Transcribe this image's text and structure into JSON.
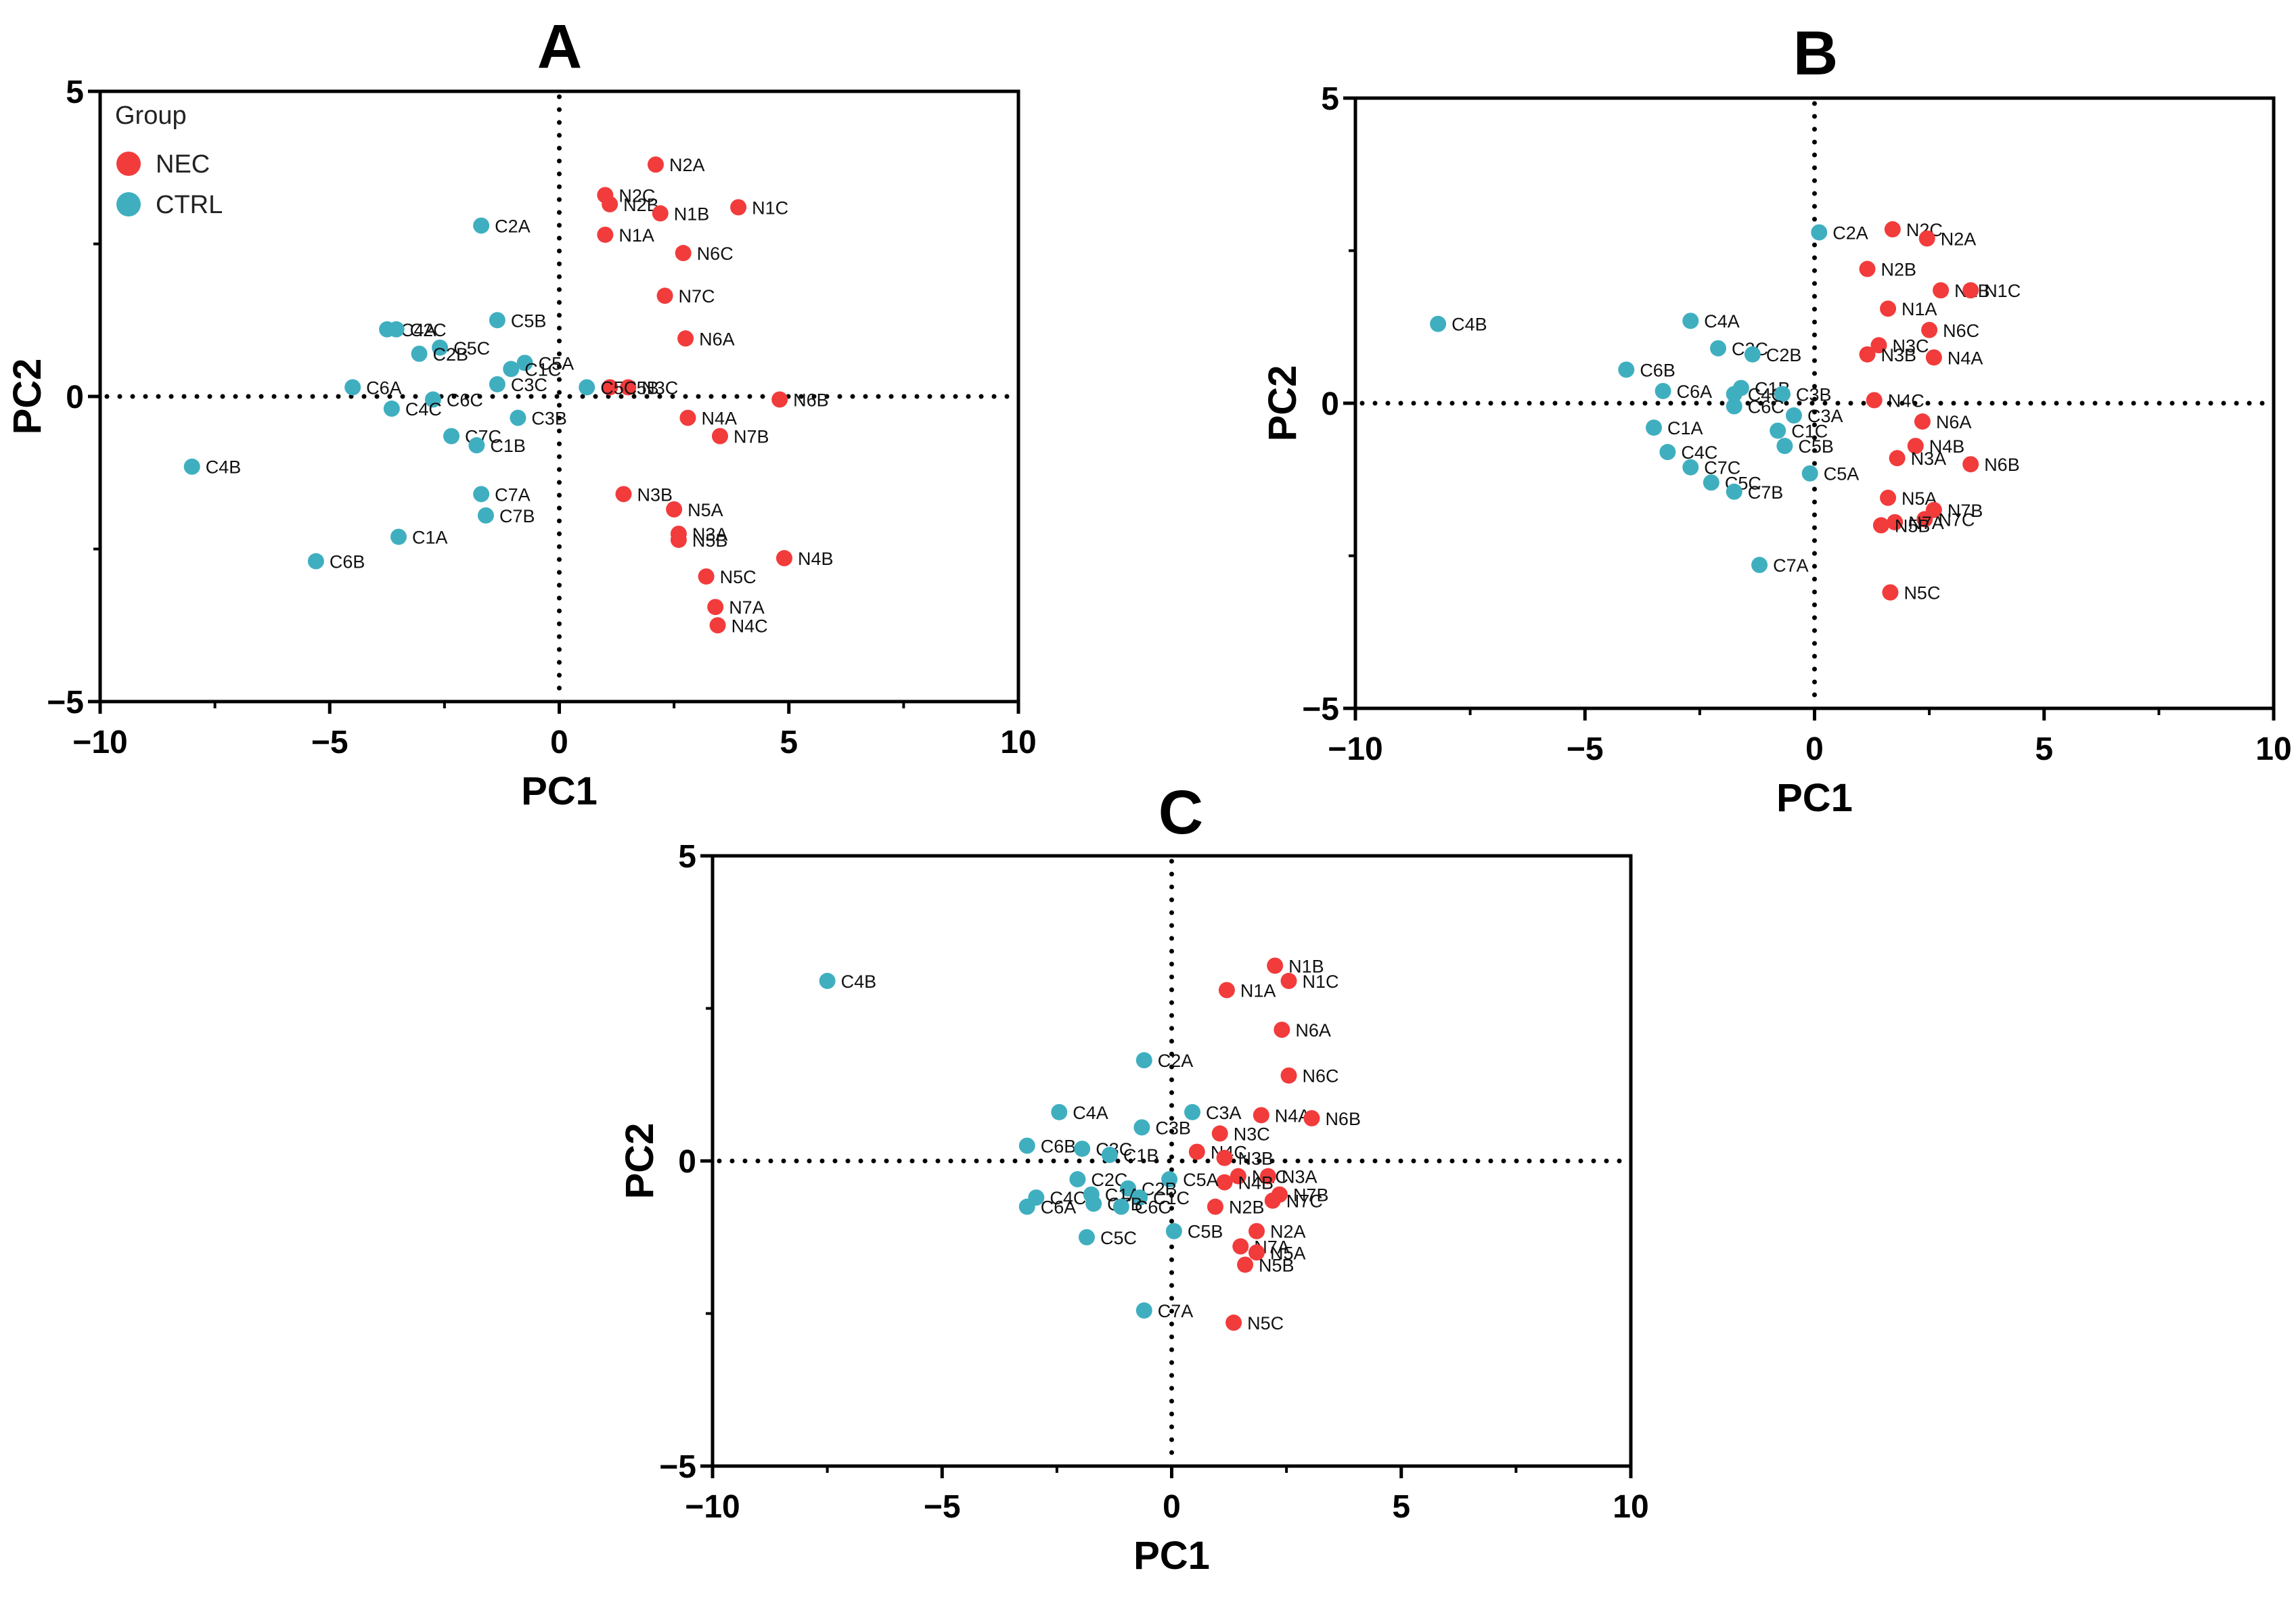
{
  "colors": {
    "NEC": "#f23b3b",
    "CTRL": "#3fafc0"
  },
  "legend": {
    "title": "Group",
    "items": [
      {
        "group": "NEC",
        "label": "NEC"
      },
      {
        "group": "CTRL",
        "label": "CTRL"
      }
    ]
  },
  "chart_data": [
    {
      "panel": "A",
      "type": "scatter",
      "title": "A",
      "xlabel": "PC1",
      "ylabel": "PC2",
      "xlim": [
        -10,
        10
      ],
      "ylim": [
        -5,
        5
      ],
      "xticks": [
        "−10",
        "−5",
        "0",
        "5",
        "10"
      ],
      "yticks": [
        "5",
        "0",
        "−5"
      ],
      "xtick_values": [
        -10,
        -5,
        0,
        5,
        10
      ],
      "ytick_values": [
        5,
        0,
        -5
      ],
      "reference_lines": {
        "x": 0,
        "y": 0,
        "style": "dotted"
      },
      "grid": false,
      "legend_position": "top-left",
      "points": [
        {
          "label": "N2A",
          "group": "NEC",
          "x": 2.1,
          "y": 3.8
        },
        {
          "label": "N2C",
          "group": "NEC",
          "x": 1.0,
          "y": 3.3
        },
        {
          "label": "N2B",
          "group": "NEC",
          "x": 1.1,
          "y": 3.15
        },
        {
          "label": "N1B",
          "group": "NEC",
          "x": 2.2,
          "y": 3.0
        },
        {
          "label": "N1C",
          "group": "NEC",
          "x": 3.9,
          "y": 3.1
        },
        {
          "label": "N1A",
          "group": "NEC",
          "x": 1.0,
          "y": 2.65
        },
        {
          "label": "N6C",
          "group": "NEC",
          "x": 2.7,
          "y": 2.35
        },
        {
          "label": "N7C",
          "group": "NEC",
          "x": 2.3,
          "y": 1.65
        },
        {
          "label": "N6A",
          "group": "NEC",
          "x": 2.75,
          "y": 0.95
        },
        {
          "label": "N5B",
          "group": "NEC",
          "x": 1.1,
          "y": 0.15
        },
        {
          "label": "N3C",
          "group": "NEC",
          "x": 1.5,
          "y": 0.15
        },
        {
          "label": "N6B",
          "group": "NEC",
          "x": 4.8,
          "y": -0.05
        },
        {
          "label": "N4A",
          "group": "NEC",
          "x": 2.8,
          "y": -0.35
        },
        {
          "label": "N7B",
          "group": "NEC",
          "x": 3.5,
          "y": -0.65
        },
        {
          "label": "N3B",
          "group": "NEC",
          "x": 1.4,
          "y": -1.6
        },
        {
          "label": "N5A",
          "group": "NEC",
          "x": 2.5,
          "y": -1.85
        },
        {
          "label": "N3A",
          "group": "NEC",
          "x": 2.6,
          "y": -2.25
        },
        {
          "label": "N5B",
          "group": "NEC",
          "x": 2.6,
          "y": -2.35
        },
        {
          "label": "N4B",
          "group": "NEC",
          "x": 4.9,
          "y": -2.65
        },
        {
          "label": "N5C",
          "group": "NEC",
          "x": 3.2,
          "y": -2.95
        },
        {
          "label": "N7A",
          "group": "NEC",
          "x": 3.4,
          "y": -3.45
        },
        {
          "label": "N4C",
          "group": "NEC",
          "x": 3.45,
          "y": -3.75
        },
        {
          "label": "C2A",
          "group": "CTRL",
          "x": -1.7,
          "y": 2.8
        },
        {
          "label": "C5B",
          "group": "CTRL",
          "x": -1.35,
          "y": 1.25
        },
        {
          "label": "C4A",
          "group": "CTRL",
          "x": -3.75,
          "y": 1.1
        },
        {
          "label": "C2C",
          "group": "CTRL",
          "x": -3.55,
          "y": 1.1
        },
        {
          "label": "C5C",
          "group": "CTRL",
          "x": -2.6,
          "y": 0.8
        },
        {
          "label": "C2B",
          "group": "CTRL",
          "x": -3.05,
          "y": 0.7
        },
        {
          "label": "C5A",
          "group": "CTRL",
          "x": -0.75,
          "y": 0.55
        },
        {
          "label": "C1C",
          "group": "CTRL",
          "x": -1.05,
          "y": 0.45
        },
        {
          "label": "C3C",
          "group": "CTRL",
          "x": -1.35,
          "y": 0.2
        },
        {
          "label": "C6A",
          "group": "CTRL",
          "x": -4.5,
          "y": 0.15
        },
        {
          "label": "C5C",
          "group": "CTRL",
          "x": 0.6,
          "y": 0.15
        },
        {
          "label": "C6C",
          "group": "CTRL",
          "x": -2.75,
          "y": -0.05
        },
        {
          "label": "C4C",
          "group": "CTRL",
          "x": -3.65,
          "y": -0.2
        },
        {
          "label": "C3B",
          "group": "CTRL",
          "x": -0.9,
          "y": -0.35
        },
        {
          "label": "C7C",
          "group": "CTRL",
          "x": -2.35,
          "y": -0.65
        },
        {
          "label": "C1B",
          "group": "CTRL",
          "x": -1.8,
          "y": -0.8
        },
        {
          "label": "C4B",
          "group": "CTRL",
          "x": -8.0,
          "y": -1.15
        },
        {
          "label": "C7A",
          "group": "CTRL",
          "x": -1.7,
          "y": -1.6
        },
        {
          "label": "C7B",
          "group": "CTRL",
          "x": -1.6,
          "y": -1.95
        },
        {
          "label": "C1A",
          "group": "CTRL",
          "x": -3.5,
          "y": -2.3
        },
        {
          "label": "C6B",
          "group": "CTRL",
          "x": -5.3,
          "y": -2.7
        }
      ]
    },
    {
      "panel": "B",
      "type": "scatter",
      "title": "B",
      "xlabel": "PC1",
      "ylabel": "PC2",
      "xlim": [
        -10,
        10
      ],
      "ylim": [
        -5,
        5
      ],
      "xticks": [
        "−10",
        "−5",
        "0",
        "5",
        "10"
      ],
      "yticks": [
        "5",
        "0",
        "−5"
      ],
      "xtick_values": [
        -10,
        -5,
        0,
        5,
        10
      ],
      "ytick_values": [
        5,
        0,
        -5
      ],
      "reference_lines": {
        "x": 0,
        "y": 0,
        "style": "dotted"
      },
      "grid": false,
      "points": [
        {
          "label": "N2C",
          "group": "NEC",
          "x": 1.7,
          "y": 2.85
        },
        {
          "label": "N2A",
          "group": "NEC",
          "x": 2.45,
          "y": 2.7
        },
        {
          "label": "N2B",
          "group": "NEC",
          "x": 1.15,
          "y": 2.2
        },
        {
          "label": "N1B",
          "group": "NEC",
          "x": 2.75,
          "y": 1.85
        },
        {
          "label": "N1C",
          "group": "NEC",
          "x": 3.4,
          "y": 1.85
        },
        {
          "label": "N1A",
          "group": "NEC",
          "x": 1.6,
          "y": 1.55
        },
        {
          "label": "N6C",
          "group": "NEC",
          "x": 2.5,
          "y": 1.2
        },
        {
          "label": "N3C",
          "group": "NEC",
          "x": 1.4,
          "y": 0.95
        },
        {
          "label": "N3B",
          "group": "NEC",
          "x": 1.15,
          "y": 0.8
        },
        {
          "label": "N4A",
          "group": "NEC",
          "x": 2.6,
          "y": 0.75
        },
        {
          "label": "N4C",
          "group": "NEC",
          "x": 1.3,
          "y": 0.05
        },
        {
          "label": "N6A",
          "group": "NEC",
          "x": 2.35,
          "y": -0.3
        },
        {
          "label": "N4B",
          "group": "NEC",
          "x": 2.2,
          "y": -0.7
        },
        {
          "label": "N3A",
          "group": "NEC",
          "x": 1.8,
          "y": -0.9
        },
        {
          "label": "N6B",
          "group": "NEC",
          "x": 3.4,
          "y": -1.0
        },
        {
          "label": "N5A",
          "group": "NEC",
          "x": 1.6,
          "y": -1.55
        },
        {
          "label": "N7B",
          "group": "NEC",
          "x": 2.6,
          "y": -1.75
        },
        {
          "label": "N7C",
          "group": "NEC",
          "x": 2.4,
          "y": -1.9
        },
        {
          "label": "N7A",
          "group": "NEC",
          "x": 1.75,
          "y": -1.95
        },
        {
          "label": "N5B",
          "group": "NEC",
          "x": 1.45,
          "y": -2.0
        },
        {
          "label": "N5C",
          "group": "NEC",
          "x": 1.65,
          "y": -3.1
        },
        {
          "label": "C2A",
          "group": "CTRL",
          "x": 0.1,
          "y": 2.8
        },
        {
          "label": "C4B",
          "group": "CTRL",
          "x": -8.2,
          "y": 1.3
        },
        {
          "label": "C4A",
          "group": "CTRL",
          "x": -2.7,
          "y": 1.35
        },
        {
          "label": "C2C",
          "group": "CTRL",
          "x": -2.1,
          "y": 0.9
        },
        {
          "label": "C2B",
          "group": "CTRL",
          "x": -1.35,
          "y": 0.8
        },
        {
          "label": "C6B",
          "group": "CTRL",
          "x": -4.1,
          "y": 0.55
        },
        {
          "label": "C6A",
          "group": "CTRL",
          "x": -3.3,
          "y": 0.2
        },
        {
          "label": "C1B",
          "group": "CTRL",
          "x": -1.6,
          "y": 0.25
        },
        {
          "label": "C4C",
          "group": "CTRL",
          "x": -1.75,
          "y": 0.15
        },
        {
          "label": "C3B",
          "group": "CTRL",
          "x": -0.7,
          "y": 0.15
        },
        {
          "label": "C6C",
          "group": "CTRL",
          "x": -1.75,
          "y": -0.05
        },
        {
          "label": "C3A",
          "group": "CTRL",
          "x": -0.45,
          "y": -0.2
        },
        {
          "label": "C1C",
          "group": "CTRL",
          "x": -0.8,
          "y": -0.45
        },
        {
          "label": "C5B",
          "group": "CTRL",
          "x": -0.65,
          "y": -0.7
        },
        {
          "label": "C1A",
          "group": "CTRL",
          "x": -3.5,
          "y": -0.4
        },
        {
          "label": "C4C",
          "group": "CTRL",
          "x": -3.2,
          "y": -0.8
        },
        {
          "label": "C7C",
          "group": "CTRL",
          "x": -2.7,
          "y": -1.05
        },
        {
          "label": "C5A",
          "group": "CTRL",
          "x": -0.1,
          "y": -1.15
        },
        {
          "label": "C5C",
          "group": "CTRL",
          "x": -2.25,
          "y": -1.3
        },
        {
          "label": "C7B",
          "group": "CTRL",
          "x": -1.75,
          "y": -1.45
        },
        {
          "label": "C7A",
          "group": "CTRL",
          "x": -1.2,
          "y": -2.65
        }
      ]
    },
    {
      "panel": "C",
      "type": "scatter",
      "title": "C",
      "xlabel": "PC1",
      "ylabel": "PC2",
      "xlim": [
        -10,
        10
      ],
      "ylim": [
        -5,
        5
      ],
      "xticks": [
        "−10",
        "−5",
        "0",
        "5",
        "10"
      ],
      "yticks": [
        "5",
        "0",
        "−5"
      ],
      "xtick_values": [
        -10,
        -5,
        0,
        5,
        10
      ],
      "ytick_values": [
        5,
        0,
        -5
      ],
      "reference_lines": {
        "x": 0,
        "y": 0,
        "style": "dotted"
      },
      "grid": false,
      "points": [
        {
          "label": "N1B",
          "group": "NEC",
          "x": 2.25,
          "y": 3.2
        },
        {
          "label": "N1C",
          "group": "NEC",
          "x": 2.55,
          "y": 2.95
        },
        {
          "label": "N1A",
          "group": "NEC",
          "x": 1.2,
          "y": 2.8
        },
        {
          "label": "N6A",
          "group": "NEC",
          "x": 2.4,
          "y": 2.15
        },
        {
          "label": "N6C",
          "group": "NEC",
          "x": 2.55,
          "y": 1.4
        },
        {
          "label": "N4A",
          "group": "NEC",
          "x": 1.95,
          "y": 0.75
        },
        {
          "label": "N6B",
          "group": "NEC",
          "x": 3.05,
          "y": 0.7
        },
        {
          "label": "N3C",
          "group": "NEC",
          "x": 1.05,
          "y": 0.45
        },
        {
          "label": "N4C",
          "group": "NEC",
          "x": 0.55,
          "y": 0.15
        },
        {
          "label": "N3B",
          "group": "NEC",
          "x": 1.15,
          "y": 0.05
        },
        {
          "label": "N2C",
          "group": "NEC",
          "x": 1.45,
          "y": -0.25
        },
        {
          "label": "N3A",
          "group": "NEC",
          "x": 2.1,
          "y": -0.25
        },
        {
          "label": "N4B",
          "group": "NEC",
          "x": 1.15,
          "y": -0.35
        },
        {
          "label": "N7B",
          "group": "NEC",
          "x": 2.35,
          "y": -0.55
        },
        {
          "label": "N7C",
          "group": "NEC",
          "x": 2.2,
          "y": -0.65
        },
        {
          "label": "N2B",
          "group": "NEC",
          "x": 0.95,
          "y": -0.75
        },
        {
          "label": "N2A",
          "group": "NEC",
          "x": 1.85,
          "y": -1.15
        },
        {
          "label": "N7A",
          "group": "NEC",
          "x": 1.5,
          "y": -1.4
        },
        {
          "label": "N5A",
          "group": "NEC",
          "x": 1.85,
          "y": -1.5
        },
        {
          "label": "N5B",
          "group": "NEC",
          "x": 1.6,
          "y": -1.7
        },
        {
          "label": "N5C",
          "group": "NEC",
          "x": 1.35,
          "y": -2.65
        },
        {
          "label": "C4B",
          "group": "CTRL",
          "x": -7.5,
          "y": 2.95
        },
        {
          "label": "C2A",
          "group": "CTRL",
          "x": -0.6,
          "y": 1.65
        },
        {
          "label": "C4A",
          "group": "CTRL",
          "x": -2.45,
          "y": 0.8
        },
        {
          "label": "C3A",
          "group": "CTRL",
          "x": 0.45,
          "y": 0.8
        },
        {
          "label": "C3B",
          "group": "CTRL",
          "x": -0.65,
          "y": 0.55
        },
        {
          "label": "C6B",
          "group": "CTRL",
          "x": -3.15,
          "y": 0.25
        },
        {
          "label": "C3C",
          "group": "CTRL",
          "x": -1.95,
          "y": 0.2
        },
        {
          "label": "C1B",
          "group": "CTRL",
          "x": -1.35,
          "y": 0.1
        },
        {
          "label": "C2C",
          "group": "CTRL",
          "x": -2.05,
          "y": -0.3
        },
        {
          "label": "C5A",
          "group": "CTRL",
          "x": -0.05,
          "y": -0.3
        },
        {
          "label": "C2B",
          "group": "CTRL",
          "x": -0.95,
          "y": -0.45
        },
        {
          "label": "C4C",
          "group": "CTRL",
          "x": -2.95,
          "y": -0.6
        },
        {
          "label": "C1A",
          "group": "CTRL",
          "x": -1.75,
          "y": -0.55
        },
        {
          "label": "C1C",
          "group": "CTRL",
          "x": -0.7,
          "y": -0.6
        },
        {
          "label": "C6A",
          "group": "CTRL",
          "x": -3.15,
          "y": -0.75
        },
        {
          "label": "C7B",
          "group": "CTRL",
          "x": -1.7,
          "y": -0.7
        },
        {
          "label": "C6C",
          "group": "CTRL",
          "x": -1.1,
          "y": -0.75
        },
        {
          "label": "C5B",
          "group": "CTRL",
          "x": 0.05,
          "y": -1.15
        },
        {
          "label": "C5C",
          "group": "CTRL",
          "x": -1.85,
          "y": -1.25
        },
        {
          "label": "C7A",
          "group": "CTRL",
          "x": -0.6,
          "y": -2.45
        }
      ]
    }
  ]
}
